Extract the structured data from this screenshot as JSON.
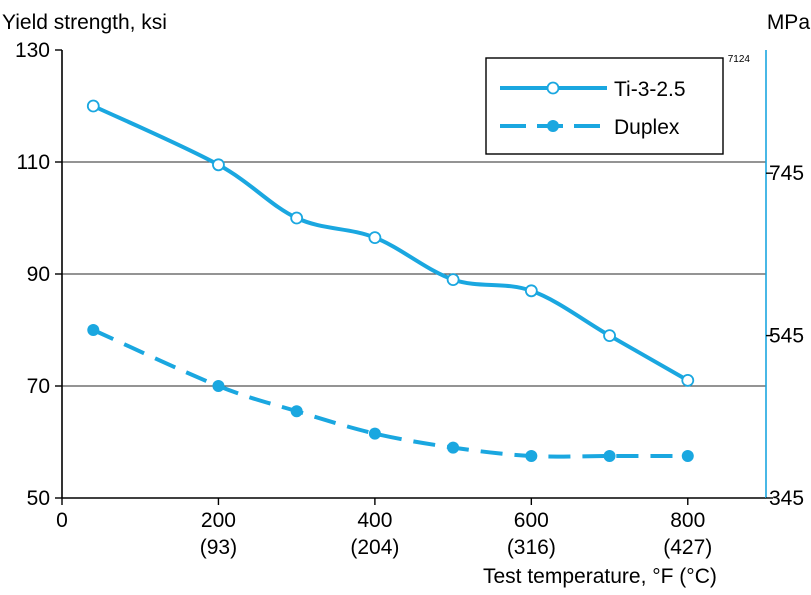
{
  "chart_data": {
    "type": "line",
    "ylabel_left": "Yield strength, ksi",
    "ylabel_right": "MPa",
    "xlabel": "Test temperature,   °F (°C)",
    "figure_code": "7124",
    "xlim": [
      0,
      900
    ],
    "ylim": [
      50,
      130
    ],
    "x_ticks": [
      {
        "value": 0,
        "label": "0",
        "sublabel": ""
      },
      {
        "value": 200,
        "label": "200",
        "sublabel": "(93)"
      },
      {
        "value": 400,
        "label": "400",
        "sublabel": "(204)"
      },
      {
        "value": 600,
        "label": "600",
        "sublabel": "(316)"
      },
      {
        "value": 800,
        "label": "800",
        "sublabel": "(427)"
      }
    ],
    "y_ticks_left": [
      {
        "value": 50,
        "label": "50"
      },
      {
        "value": 70,
        "label": "70"
      },
      {
        "value": 90,
        "label": "90"
      },
      {
        "value": 110,
        "label": "110"
      },
      {
        "value": 130,
        "label": "130"
      }
    ],
    "y_ticks_right": [
      {
        "value": 50,
        "label": "345"
      },
      {
        "value": 79,
        "label": "545"
      },
      {
        "value": 108,
        "label": "745"
      }
    ],
    "gridlines_y": [
      70,
      90,
      110
    ],
    "legend_position": "top-right",
    "series": [
      {
        "name": "Ti-3-2.5",
        "style": "solid",
        "marker": "open-circle",
        "x": [
          40,
          200,
          300,
          400,
          500,
          600,
          700,
          800
        ],
        "y": [
          120,
          109.5,
          100,
          96.5,
          89,
          87,
          79,
          71
        ]
      },
      {
        "name": "Duplex",
        "style": "dashed",
        "marker": "filled-circle",
        "x": [
          40,
          200,
          300,
          400,
          500,
          600,
          700,
          800
        ],
        "y": [
          80,
          70,
          65.5,
          61.5,
          59,
          57.5,
          57.5,
          57.5
        ]
      }
    ]
  },
  "colors": {
    "series": "#1aa7e0",
    "axis": "#000000",
    "grid": "#555555",
    "marker_fill_open": "#ffffff"
  }
}
